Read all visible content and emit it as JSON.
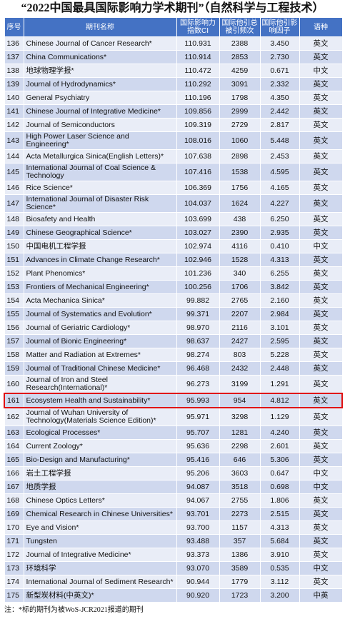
{
  "title": "“2022中国最具国际影响力学术期刊”（自然科学与工程技术）",
  "table": {
    "header": [
      "序号",
      "期刊名称",
      "国际影响力指数CI",
      "国际他引总被引频次",
      "国际他引影响因子",
      "语种"
    ],
    "rows": [
      [
        "136",
        "Chinese Journal of Cancer Research*",
        "110.931",
        "2388",
        "3.450",
        "英文"
      ],
      [
        "137",
        "China Communications*",
        "110.914",
        "2853",
        "2.730",
        "英文"
      ],
      [
        "138",
        "地球物理学报*",
        "110.472",
        "4259",
        "0.671",
        "中文"
      ],
      [
        "139",
        "Journal of Hydrodynamics*",
        "110.292",
        "3091",
        "2.332",
        "英文"
      ],
      [
        "140",
        "General Psychiatry",
        "110.196",
        "1798",
        "4.350",
        "英文"
      ],
      [
        "141",
        "Chinese Journal of Integrative Medicine*",
        "109.856",
        "2999",
        "2.442",
        "英文"
      ],
      [
        "142",
        "Journal of Semiconductors",
        "109.319",
        "2729",
        "2.817",
        "英文"
      ],
      [
        "143",
        "High Power Laser Science and Engineering*",
        "108.016",
        "1060",
        "5.448",
        "英文"
      ],
      [
        "144",
        "Acta Metallurgica Sinica(English Letters)*",
        "107.638",
        "2898",
        "2.453",
        "英文"
      ],
      [
        "145",
        "International Journal of Coal Science & Technology",
        "107.416",
        "1538",
        "4.595",
        "英文"
      ],
      [
        "146",
        "Rice Science*",
        "106.369",
        "1756",
        "4.165",
        "英文"
      ],
      [
        "147",
        "International Journal of Disaster Risk Science*",
        "104.037",
        "1624",
        "4.227",
        "英文"
      ],
      [
        "148",
        "Biosafety and Health",
        "103.699",
        "438",
        "6.250",
        "英文"
      ],
      [
        "149",
        "Chinese Geographical Science*",
        "103.027",
        "2390",
        "2.935",
        "英文"
      ],
      [
        "150",
        "中国电机工程学报",
        "102.974",
        "4116",
        "0.410",
        "中文"
      ],
      [
        "151",
        "Advances in Climate Change Research*",
        "102.946",
        "1528",
        "4.313",
        "英文"
      ],
      [
        "152",
        "Plant Phenomics*",
        "101.236",
        "340",
        "6.255",
        "英文"
      ],
      [
        "153",
        "Frontiers of Mechanical Engineering*",
        "100.256",
        "1706",
        "3.842",
        "英文"
      ],
      [
        "154",
        "Acta Mechanica Sinica*",
        "99.882",
        "2765",
        "2.160",
        "英文"
      ],
      [
        "155",
        "Journal of Systematics and Evolution*",
        "99.371",
        "2207",
        "2.984",
        "英文"
      ],
      [
        "156",
        "Journal of Geriatric Cardiology*",
        "98.970",
        "2116",
        "3.101",
        "英文"
      ],
      [
        "157",
        "Journal of Bionic Engineering*",
        "98.637",
        "2427",
        "2.595",
        "英文"
      ],
      [
        "158",
        "Matter and Radiation at Extremes*",
        "98.274",
        "803",
        "5.228",
        "英文"
      ],
      [
        "159",
        "Journal of Traditional Chinese Medicine*",
        "96.468",
        "2432",
        "2.448",
        "英文"
      ],
      [
        "160",
        "Journal of Iron and Steel Research(International)*",
        "96.273",
        "3199",
        "1.291",
        "英文"
      ],
      [
        "161",
        "Ecosystem Health and Sustainability*",
        "95.993",
        "954",
        "4.812",
        "英文"
      ],
      [
        "162",
        "Journal of Wuhan University of Technology(Materials Science Edition)*",
        "95.971",
        "3298",
        "1.129",
        "英文"
      ],
      [
        "163",
        "Ecological Processes*",
        "95.707",
        "1281",
        "4.240",
        "英文"
      ],
      [
        "164",
        "Current Zoology*",
        "95.636",
        "2298",
        "2.601",
        "英文"
      ],
      [
        "165",
        "Bio-Design and Manufacturing*",
        "95.416",
        "646",
        "5.306",
        "英文"
      ],
      [
        "166",
        "岩土工程学报",
        "95.206",
        "3603",
        "0.647",
        "中文"
      ],
      [
        "167",
        "地质学报",
        "94.087",
        "3518",
        "0.698",
        "中文"
      ],
      [
        "168",
        "Chinese Optics Letters*",
        "94.067",
        "2755",
        "1.806",
        "英文"
      ],
      [
        "169",
        "Chemical Research in Chinese Universities*",
        "93.701",
        "2273",
        "2.515",
        "英文"
      ],
      [
        "170",
        "Eye and Vision*",
        "93.700",
        "1157",
        "4.313",
        "英文"
      ],
      [
        "171",
        "Tungsten",
        "93.488",
        "357",
        "5.684",
        "英文"
      ],
      [
        "172",
        "Journal of Integrative Medicine*",
        "93.373",
        "1386",
        "3.910",
        "英文"
      ],
      [
        "173",
        "环境科学",
        "93.070",
        "3589",
        "0.535",
        "中文"
      ],
      [
        "174",
        "International Journal of Sediment Research*",
        "90.944",
        "1779",
        "3.112",
        "英文"
      ],
      [
        "175",
        "新型炭材料(中英文)*",
        "90.920",
        "1723",
        "3.200",
        "中英"
      ]
    ]
  },
  "footnote": "注：*标的期刊为被WoS-JCR2021报道的期刊"
}
